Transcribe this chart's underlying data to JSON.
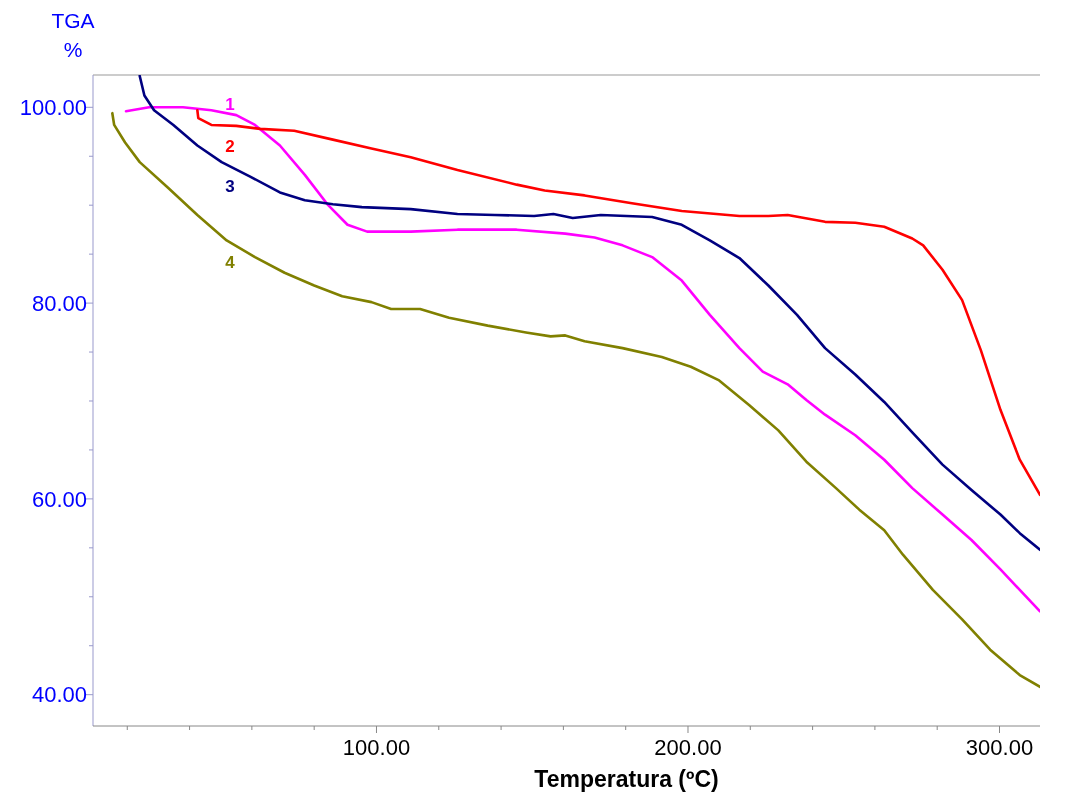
{
  "chart_data": {
    "type": "line",
    "xlabel": "Temperatura (ºC)",
    "ylabel": "TGA\n%",
    "xlim": [
      9,
      313
    ],
    "ylim": [
      36.8,
      103.3
    ],
    "xticks": [
      {
        "value": 20,
        "label": null
      },
      {
        "value": 40,
        "label": null
      },
      {
        "value": 60,
        "label": null
      },
      {
        "value": 80,
        "label": null
      },
      {
        "value": 100,
        "label": "100.00"
      },
      {
        "value": 120,
        "label": null
      },
      {
        "value": 140,
        "label": null
      },
      {
        "value": 160,
        "label": null
      },
      {
        "value": 180,
        "label": null
      },
      {
        "value": 200,
        "label": "200.00"
      },
      {
        "value": 220,
        "label": null
      },
      {
        "value": 240,
        "label": null
      },
      {
        "value": 260,
        "label": null
      },
      {
        "value": 280,
        "label": null
      },
      {
        "value": 300,
        "label": "300.00"
      }
    ],
    "yticks": [
      {
        "value": 40,
        "label": "40.00"
      },
      {
        "value": 45,
        "label": null
      },
      {
        "value": 50,
        "label": null
      },
      {
        "value": 55,
        "label": null
      },
      {
        "value": 60,
        "label": "60.00"
      },
      {
        "value": 65,
        "label": null
      },
      {
        "value": 70,
        "label": null
      },
      {
        "value": 75,
        "label": null
      },
      {
        "value": 80,
        "label": "80.00"
      },
      {
        "value": 85,
        "label": null
      },
      {
        "value": 90,
        "label": null
      },
      {
        "value": 95,
        "label": null
      },
      {
        "value": 100,
        "label": "100.00"
      }
    ],
    "grid": false,
    "marker": "none",
    "line_style": "solid",
    "series": [
      {
        "name": "1",
        "color": "#ff00ff",
        "x": [
          19.6,
          27,
          37.9,
          47,
          55,
          61,
          69,
          77,
          84.5,
          90.7,
          97,
          111,
          126,
          145,
          160.6,
          170,
          179,
          188.5,
          198,
          207,
          216.5,
          224,
          232,
          238,
          244,
          253.7,
          263,
          272,
          281.7,
          291,
          300.3,
          306.5,
          313
        ],
        "values": [
          99.6,
          100,
          100,
          99.7,
          99.2,
          98.2,
          96.1,
          93.1,
          90,
          88,
          87.3,
          87.3,
          87.5,
          87.5,
          87.1,
          86.7,
          85.9,
          84.7,
          82.3,
          78.8,
          75.4,
          73,
          71.7,
          70.1,
          68.6,
          66.5,
          64,
          61.1,
          58.4,
          55.8,
          52.8,
          50.7,
          48.5
        ]
      },
      {
        "name": "2",
        "color": "#ff0000",
        "x": [
          42.5,
          42.8,
          47,
          55,
          62.7,
          73.6,
          86,
          98.4,
          111,
          126,
          145,
          154,
          166.8,
          182,
          198,
          216.5,
          225.8,
          232,
          244,
          253.7,
          263,
          272,
          275.5,
          281.7,
          288,
          294,
          300.3,
          306.5,
          313
        ],
        "values": [
          99.7,
          98.9,
          98.2,
          98.1,
          97.8,
          97.6,
          96.7,
          95.8,
          94.9,
          93.6,
          92.1,
          91.5,
          91,
          90.2,
          89.4,
          88.9,
          88.9,
          89,
          88.3,
          88.2,
          87.8,
          86.6,
          85.9,
          83.4,
          80.3,
          75.2,
          69.1,
          64,
          60.4
        ]
      },
      {
        "name": "3",
        "color": "#000080",
        "x": [
          24,
          25.5,
          28.6,
          34.8,
          42.5,
          50.3,
          59.6,
          69,
          77,
          86,
          95.3,
          111,
          126,
          138,
          150.6,
          156.8,
          163,
          172,
          188.5,
          198,
          207,
          216.5,
          225.8,
          235,
          244,
          253.7,
          263,
          272,
          281.7,
          291,
          300.3,
          306.5,
          313
        ],
        "values": [
          103.2,
          101.2,
          99.7,
          98.2,
          96.1,
          94.4,
          92.9,
          91.3,
          90.5,
          90.1,
          89.8,
          89.6,
          89.1,
          89,
          88.9,
          89.1,
          88.7,
          89,
          88.8,
          88,
          86.4,
          84.6,
          81.8,
          78.8,
          75.4,
          72.7,
          69.9,
          66.8,
          63.5,
          60.9,
          58.4,
          56.5,
          54.8
        ]
      },
      {
        "name": "4",
        "color": "#808000",
        "x": [
          15.2,
          15.8,
          19.3,
          24,
          33,
          42.5,
          51.9,
          61,
          70.5,
          80,
          89,
          98.4,
          104.7,
          114,
          123.3,
          135.7,
          148,
          155.9,
          160.6,
          166.8,
          179,
          191.6,
          200.9,
          210,
          219.6,
          229,
          238,
          247.5,
          255,
          263,
          269,
          278.6,
          288,
          297,
          306.5,
          313
        ],
        "values": [
          99.4,
          98.2,
          96.4,
          94.4,
          91.8,
          89,
          86.4,
          84.7,
          83.1,
          81.8,
          80.7,
          80.1,
          79.4,
          79.4,
          78.5,
          77.7,
          77,
          76.6,
          76.7,
          76.1,
          75.4,
          74.5,
          73.5,
          72.1,
          69.6,
          67,
          63.8,
          61.1,
          58.9,
          56.8,
          54.3,
          50.7,
          47.7,
          44.6,
          42,
          40.8
        ]
      }
    ]
  }
}
